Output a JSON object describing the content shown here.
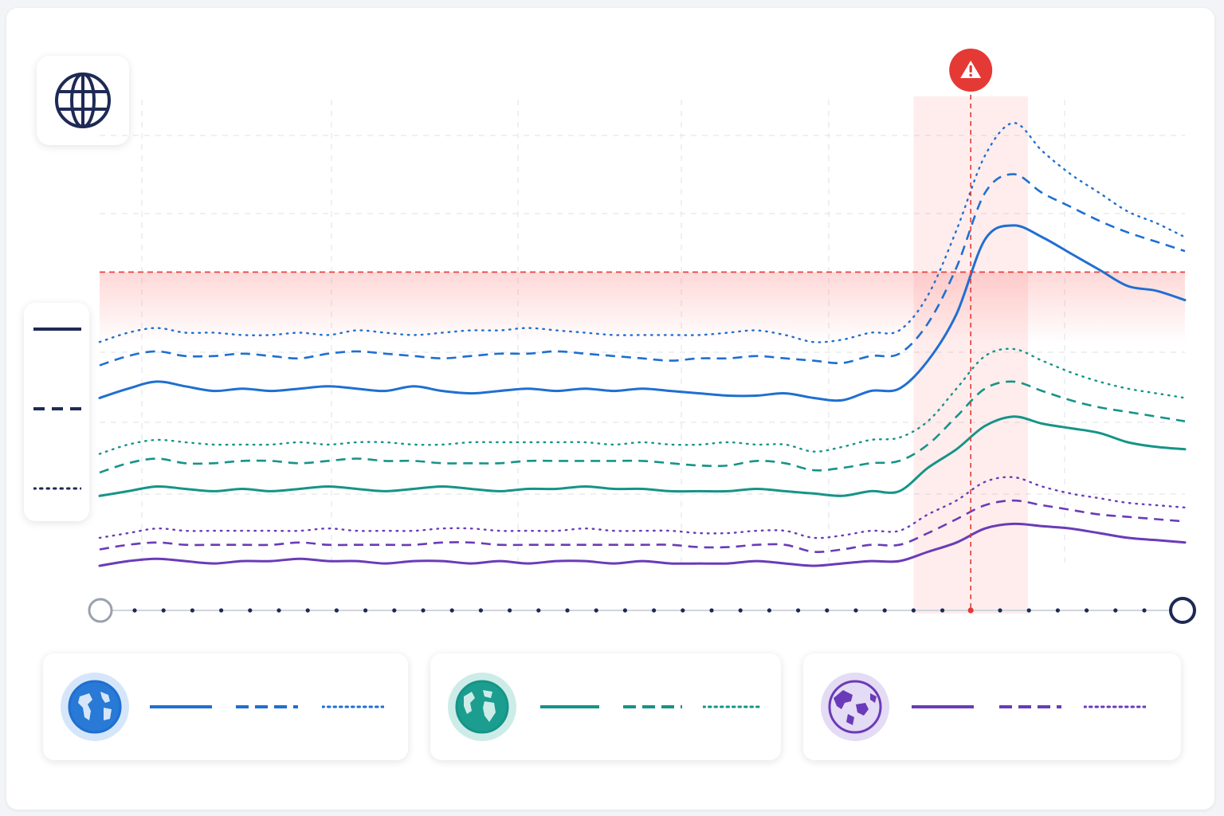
{
  "colors": {
    "blue": "#1f6fd1",
    "teal": "#159488",
    "purple": "#6a3bb8",
    "navy": "#1e2a55",
    "alert": "#e53935"
  },
  "header": {
    "icon": "globe-icon"
  },
  "alert": {
    "icon": "warning-icon"
  },
  "legend": {
    "styles": [
      {
        "style": "solid"
      },
      {
        "style": "dashed"
      },
      {
        "style": "dotted"
      }
    ]
  },
  "regions": [
    {
      "icon": "globe-americas-icon",
      "color": "#1f6fd1",
      "bg": "#d6e6fa"
    },
    {
      "icon": "globe-africa-europe-icon",
      "color": "#159488",
      "bg": "#cdece8"
    },
    {
      "icon": "globe-asia-icon",
      "color": "#6a3bb8",
      "bg": "#e4dbf4"
    }
  ],
  "chart_data": {
    "type": "line",
    "x": [
      0,
      1,
      2,
      3,
      4,
      5,
      6,
      7,
      8,
      9,
      10,
      11,
      12,
      13,
      14,
      15,
      16,
      17,
      18,
      19,
      20,
      21,
      22,
      23,
      24,
      25,
      26,
      27,
      28,
      29,
      30,
      31,
      32,
      33,
      34,
      35,
      36,
      37,
      38
    ],
    "ylim": [
      0,
      100
    ],
    "grid": true,
    "threshold": {
      "y": 63
    },
    "highlight_range": [
      28.5,
      32.5
    ],
    "alert_x": 30.5,
    "series": [
      {
        "color": "#1f6fd1",
        "style": "solid",
        "values": [
          36,
          38,
          39.5,
          38.5,
          37.5,
          38,
          37.5,
          38,
          38.5,
          38,
          37.5,
          38.5,
          37.5,
          37,
          37.5,
          38,
          37.5,
          38,
          37.5,
          38,
          37.5,
          37,
          36.5,
          36.5,
          37,
          36,
          35.5,
          37.5,
          38,
          44,
          54,
          70,
          73,
          70.5,
          67,
          63.5,
          60,
          59,
          57
        ]
      },
      {
        "color": "#1f6fd1",
        "style": "dashed",
        "values": [
          43,
          45,
          46,
          45,
          45,
          45.5,
          45,
          44.5,
          45.5,
          46,
          45.5,
          45,
          44.5,
          45,
          45.5,
          45.5,
          46,
          45.5,
          45,
          44.5,
          44,
          44.5,
          44.5,
          45,
          44.5,
          44,
          43.5,
          45,
          45.5,
          52,
          64,
          80,
          84,
          80,
          77,
          74,
          71.5,
          69.5,
          67.5
        ]
      },
      {
        "color": "#1f6fd1",
        "style": "dotted",
        "values": [
          48,
          50,
          51,
          50,
          50,
          49.5,
          49.5,
          50,
          49.5,
          50.5,
          50,
          49.5,
          50,
          50.5,
          50.5,
          51,
          50.5,
          50,
          49.5,
          49.5,
          49.5,
          49.5,
          50,
          50.5,
          49.5,
          48,
          48.5,
          50,
          50.5,
          58,
          72,
          88,
          95,
          89,
          84,
          80,
          76,
          73.5,
          70.5
        ]
      },
      {
        "color": "#159488",
        "style": "solid",
        "values": [
          15,
          16,
          17,
          16.5,
          16,
          16.5,
          16,
          16.5,
          17,
          16.5,
          16,
          16.5,
          17,
          16.5,
          16,
          16.5,
          16.5,
          17,
          16.5,
          16.5,
          16,
          16,
          16,
          16.5,
          16,
          15.5,
          15,
          16,
          16,
          21,
          25,
          30,
          32,
          30.5,
          29.5,
          28.5,
          26.5,
          25.5,
          25
        ]
      },
      {
        "color": "#159488",
        "style": "dashed",
        "values": [
          20,
          22,
          23,
          22,
          22,
          22.5,
          22.5,
          22,
          22.5,
          23,
          22.5,
          22.5,
          22,
          22,
          22,
          22.5,
          22.5,
          22.5,
          22.5,
          22.5,
          22,
          21.5,
          21.5,
          22.5,
          22,
          20.5,
          21,
          22,
          22.5,
          26,
          32,
          38,
          39.5,
          37.5,
          35.5,
          34,
          33,
          32,
          31
        ]
      },
      {
        "color": "#159488",
        "style": "dotted",
        "values": [
          24,
          26,
          27,
          26.5,
          26,
          26,
          26,
          26.5,
          26,
          26.5,
          26.5,
          26,
          26,
          26.5,
          26.5,
          26.5,
          26.5,
          26.5,
          26,
          26.5,
          26,
          26,
          26.5,
          26,
          26,
          24.5,
          25.5,
          27,
          27.5,
          31,
          38,
          45,
          46.5,
          44,
          41.5,
          39.5,
          38,
          37,
          36
        ]
      },
      {
        "color": "#6a3bb8",
        "style": "solid",
        "values": [
          0,
          1,
          1.5,
          1,
          0.5,
          1,
          1,
          1.5,
          1,
          1,
          0.5,
          1,
          1,
          0.5,
          1,
          0.5,
          1,
          1,
          0.5,
          1,
          0.5,
          0.5,
          0.5,
          1,
          0.5,
          0,
          0.5,
          1,
          1,
          3,
          5,
          8,
          9,
          8.5,
          8,
          7,
          6,
          5.5,
          5
        ]
      },
      {
        "color": "#6a3bb8",
        "style": "dashed",
        "values": [
          3.5,
          4.5,
          5,
          4.5,
          4.5,
          4.5,
          4.5,
          5,
          4.5,
          4.5,
          4.5,
          4.5,
          5,
          5,
          4.5,
          4.5,
          4.5,
          4.5,
          4.5,
          4.5,
          4.5,
          4,
          4,
          4.5,
          4.5,
          3,
          3.5,
          4.5,
          4.5,
          7,
          10,
          13,
          14,
          13,
          12,
          11,
          10.5,
          10,
          9.5
        ]
      },
      {
        "color": "#6a3bb8",
        "style": "dotted",
        "values": [
          6,
          7,
          8,
          7.5,
          7.5,
          7.5,
          7.5,
          7.5,
          8,
          7.5,
          7.5,
          7.5,
          8,
          8,
          7.5,
          7.5,
          7.5,
          8,
          7.5,
          7.5,
          7.5,
          7,
          7,
          7.5,
          7.5,
          6,
          6.5,
          7.5,
          7.5,
          11,
          14,
          18,
          19,
          17,
          15.5,
          14.5,
          13.5,
          13,
          12.5
        ]
      }
    ]
  }
}
